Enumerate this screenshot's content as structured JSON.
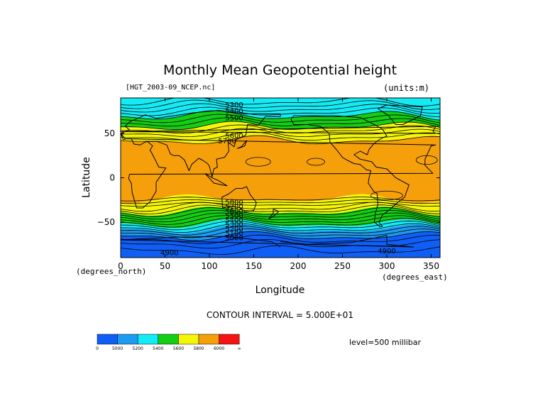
{
  "title": "Monthly Mean Geopotential height",
  "file_label": "[HGT_2003-09_NCEP.nc]",
  "units_label": "(units:m)",
  "contour_interval": "CONTOUR INTERVAL = 5.000E+01",
  "level_label": "level=500 millibar",
  "colors": {
    "palette": [
      "#0f5ff6",
      "#1e9bf0",
      "#14ebf5",
      "#14cd14",
      "#f5f50a",
      "#f5a00a",
      "#f51414"
    ]
  },
  "chart_data": {
    "type": "heatmap",
    "title": "Monthly Mean Geopotential height",
    "xlabel": "Longitude",
    "ylabel": "Latitude",
    "x_unit": "(degrees_east)",
    "y_unit": "(degrees_north)",
    "xlim": [
      0,
      360
    ],
    "ylim": [
      -90,
      90
    ],
    "x_ticks": [
      0,
      50,
      100,
      150,
      200,
      250,
      300,
      350
    ],
    "y_ticks": [
      50,
      0,
      -50
    ],
    "y_tick_labels": [
      "50",
      "0",
      "−50"
    ],
    "units": "m",
    "level": "500 millibar",
    "contour_interval": 50,
    "contour_labels": [
      {
        "text": "5300",
        "lon": 128,
        "lat": 83
      },
      {
        "text": "5400",
        "lon": 128,
        "lat": 76
      },
      {
        "text": "5500",
        "lon": 128,
        "lat": 68
      },
      {
        "text": "5600",
        "lon": 128,
        "lat": 48
      },
      {
        "text": "5700",
        "lon": 120,
        "lat": 42
      },
      {
        "text": "5800",
        "lon": 128,
        "lat": -27
      },
      {
        "text": "5700",
        "lon": 128,
        "lat": -32
      },
      {
        "text": "5600",
        "lon": 128,
        "lat": -37
      },
      {
        "text": "5500",
        "lon": 128,
        "lat": -42
      },
      {
        "text": "5400",
        "lon": 128,
        "lat": -47
      },
      {
        "text": "5300",
        "lon": 128,
        "lat": -52
      },
      {
        "text": "5200",
        "lon": 128,
        "lat": -57
      },
      {
        "text": "5100",
        "lon": 128,
        "lat": -62
      },
      {
        "text": "5000",
        "lon": 128,
        "lat": -67
      },
      {
        "text": "4900",
        "lon": 55,
        "lat": -84
      },
      {
        "text": "4900",
        "lon": 300,
        "lat": -82
      }
    ],
    "bands": [
      {
        "lat_top": 90,
        "lat_bottom": 70,
        "color": "#14ebf5",
        "range": "5200-5400"
      },
      {
        "lat_top": 70,
        "lat_bottom": 58,
        "color": "#14cd14",
        "range": "5400-5600"
      },
      {
        "lat_top": 58,
        "lat_bottom": 42,
        "color": "#f5f50a",
        "range": "5600-5800"
      },
      {
        "lat_top": 42,
        "lat_bottom": -24,
        "color": "#f5a00a",
        "range": "5800-6000"
      },
      {
        "lat_top": -24,
        "lat_bottom": -38,
        "color": "#f5f50a",
        "range": "5600-5800"
      },
      {
        "lat_top": -38,
        "lat_bottom": -52,
        "color": "#14cd14",
        "range": "5400-5600"
      },
      {
        "lat_top": -52,
        "lat_bottom": -58,
        "color": "#14ebf5",
        "range": "5200-5400"
      },
      {
        "lat_top": -58,
        "lat_bottom": -66,
        "color": "#1e9bf0",
        "range": "5000-5200"
      },
      {
        "lat_top": -66,
        "lat_bottom": -90,
        "color": "#0f5ff6",
        "range": "<5000"
      }
    ],
    "colorbar": {
      "labels": [
        "0",
        "5000",
        "5200",
        "5400",
        "5600",
        "5800",
        "6000",
        "∞"
      ],
      "colors": [
        "#0f5ff6",
        "#1e9bf0",
        "#14ebf5",
        "#14cd14",
        "#f5f50a",
        "#f5a00a",
        "#f51414"
      ]
    },
    "grid": false
  }
}
